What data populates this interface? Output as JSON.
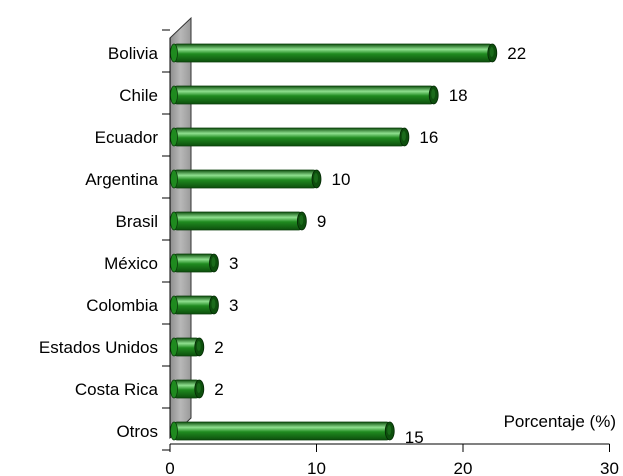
{
  "chart_data": {
    "type": "bar",
    "orientation": "horizontal",
    "style": "3d-cylinder",
    "categories": [
      "Bolivia",
      "Chile",
      "Ecuador",
      "Argentina",
      "Brasil",
      "México",
      "Colombia",
      "Estados Unidos",
      "Costa Rica",
      "Otros"
    ],
    "values": [
      22,
      18,
      16,
      10,
      9,
      3,
      3,
      2,
      2,
      15
    ],
    "data_labels": [
      "22",
      "18",
      "16",
      "10",
      "9",
      "3",
      "3",
      "2",
      "2",
      "15"
    ],
    "xlabel": "Porcentaje (%)",
    "ylabel": "",
    "xlim": [
      0,
      30
    ],
    "xticks": [
      0,
      10,
      20,
      30
    ],
    "xtick_labels": [
      "0",
      "10",
      "20",
      "30"
    ],
    "grid": false,
    "legend": "none",
    "colors": {
      "bar": "#1f8a1f",
      "bar_light": "#8fe08f",
      "bar_dark": "#0d4f0d",
      "wall": "#b8b8b8",
      "axis": "#000000"
    }
  }
}
